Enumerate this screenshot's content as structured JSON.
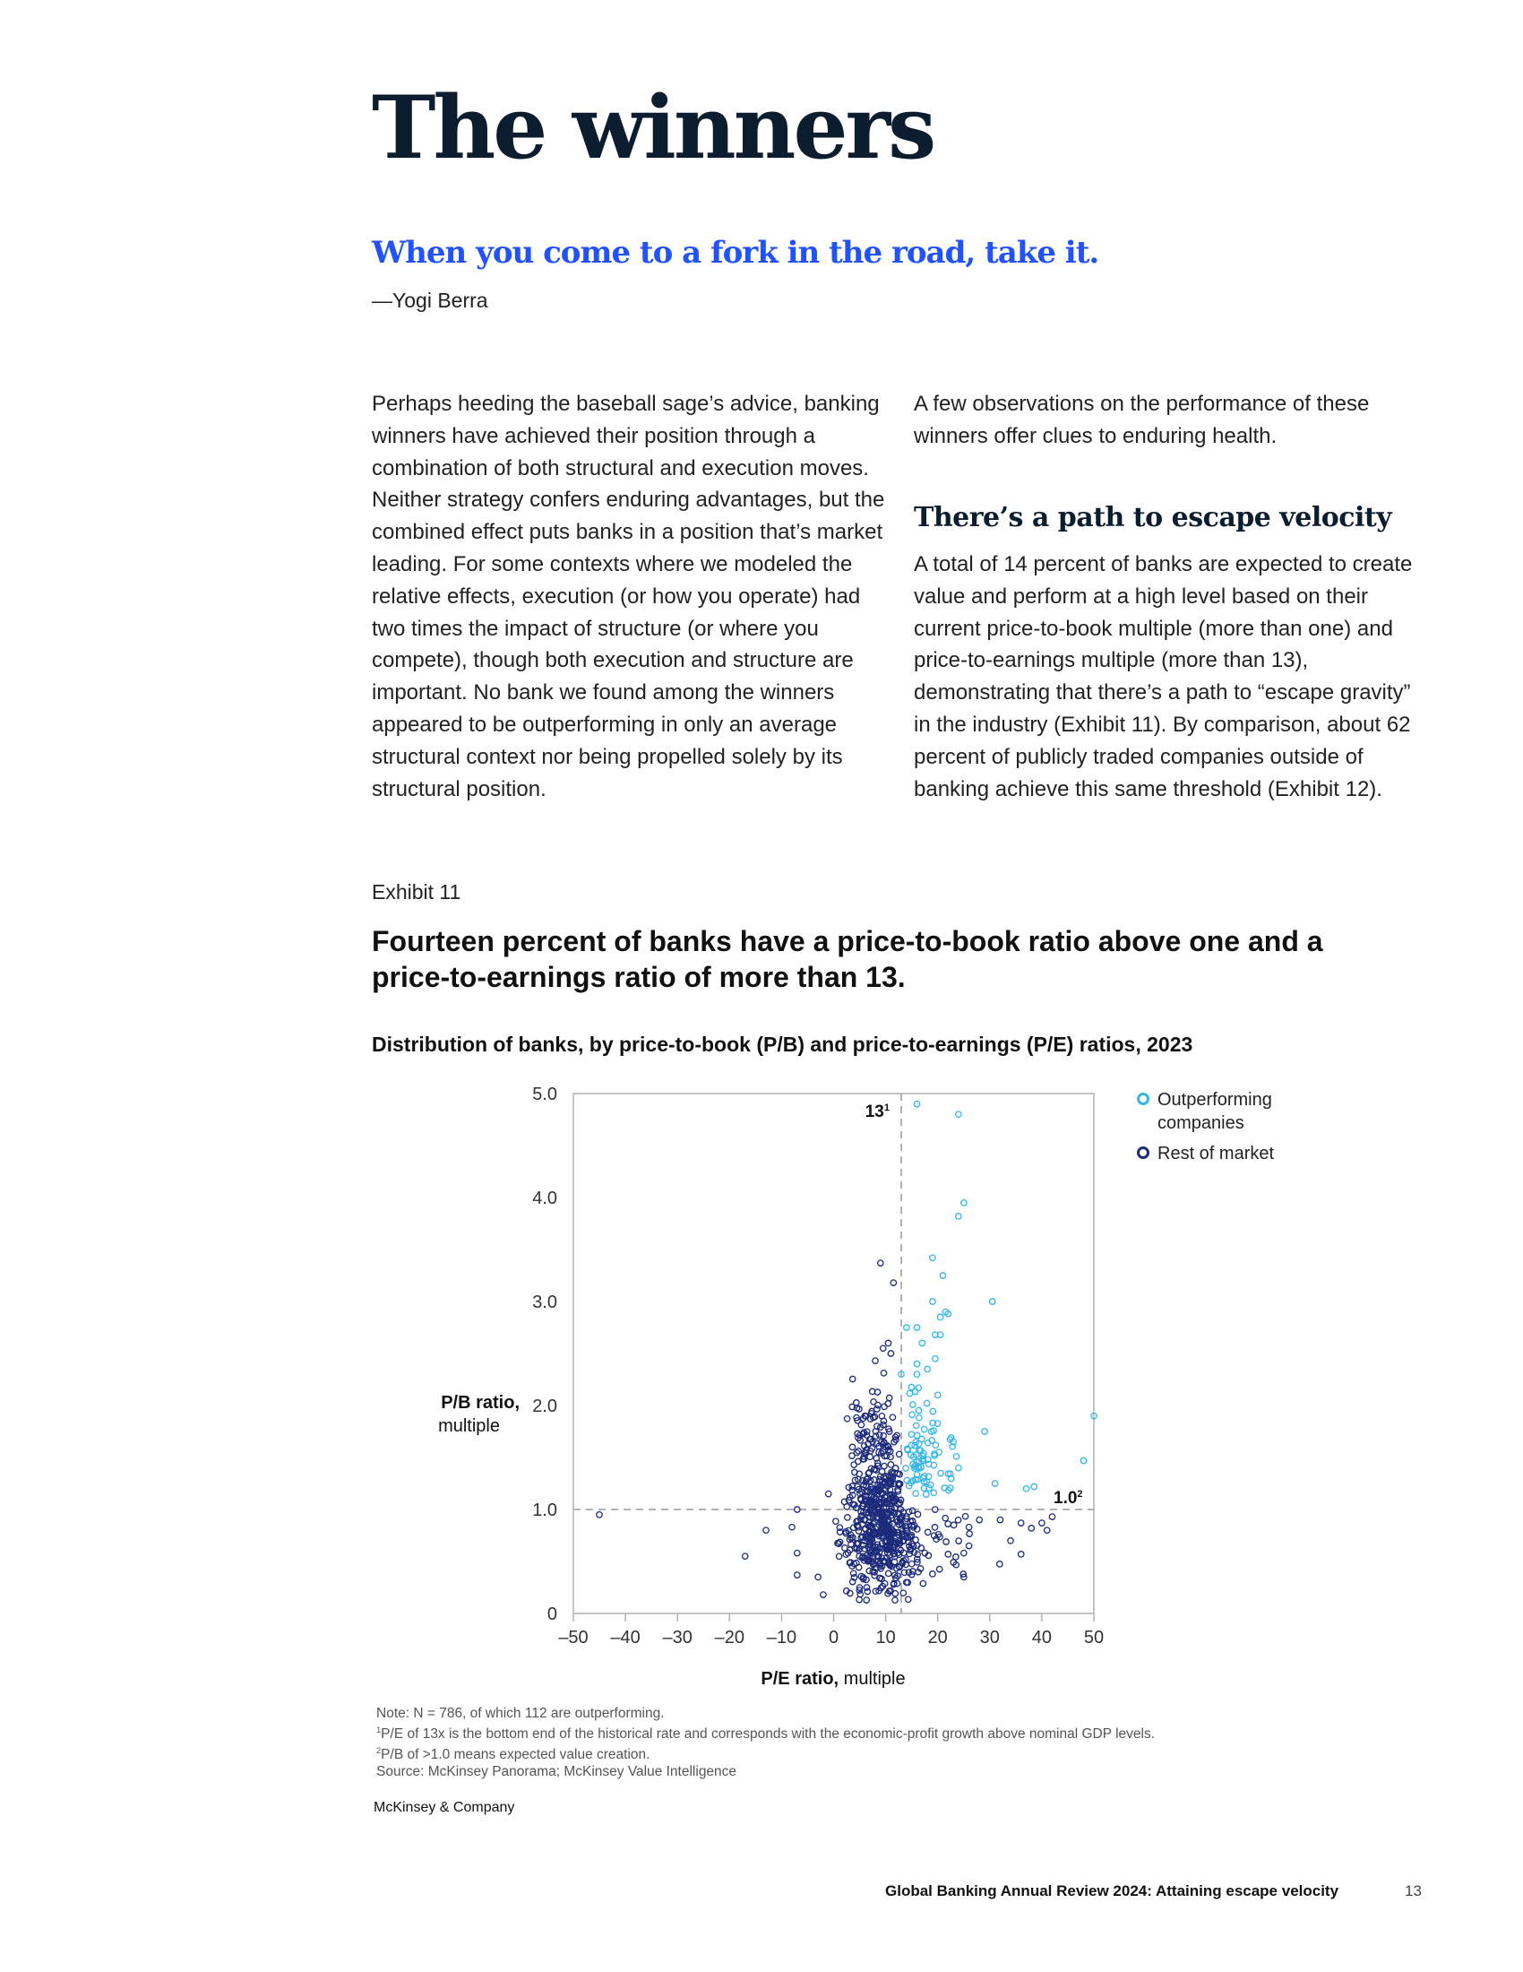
{
  "page": {
    "title": "The winners",
    "quote": "When you come to a fork in the road, take it.",
    "quote_author": "—Yogi Berra",
    "left_column": "Perhaps heeding the baseball sage’s advice, banking winners have achieved their position through a combination of both structural and execution moves. Neither strategy confers enduring advantages, but the combined effect puts banks in a position that’s market leading. For some contexts where we modeled the relative effects, execution (or how you operate) had two times the impact of structure (or where you compete), though both execution and structure are important. No bank we found among the winners appeared to be outperforming in only an average structural context nor being propelled solely by its structural position.",
    "right_column_intro": "A few observations on the performance of these winners offer clues to enduring health.",
    "subhead": "There’s a path to escape velocity",
    "right_column_body": "A total of 14 percent of banks are expected to create value and perform at a high level based on their current price-to-book multiple (more than one) and price-to-earnings multiple (more than 13), demonstrating that there’s a path to “escape gravity” in the industry (Exhibit 11). By comparison, about 62 percent of publicly traded companies outside of banking achieve this same threshold (Exhibit 12)."
  },
  "exhibit": {
    "label": "Exhibit 11",
    "title": "Fourteen percent of banks have a price-to-book ratio above one and a price-to-earnings ratio of more than 13.",
    "subtitle": "Distribution of banks, by price-to-book (P/B) and price-to-earnings (P/E) ratios, 2023"
  },
  "chart_data": {
    "type": "scatter",
    "xlabel_bold": "P/E ratio,",
    "xlabel_rest": " multiple",
    "ylabel_bold": "P/B ratio,",
    "ylabel_rest": "multiple",
    "xlim": [
      -50,
      50
    ],
    "ylim": [
      0,
      5.0
    ],
    "x_ticks": [
      -50,
      -40,
      -30,
      -20,
      -10,
      0,
      10,
      20,
      30,
      40,
      50
    ],
    "x_tick_labels": [
      "–50",
      "–40",
      "–30",
      "–20",
      "–10",
      "0",
      "10",
      "20",
      "30",
      "40",
      "50"
    ],
    "y_ticks": [
      0,
      1.0,
      2.0,
      3.0,
      4.0,
      5.0
    ],
    "y_tick_labels": [
      "0",
      "1.0",
      "2.0",
      "3.0",
      "4.0",
      "5.0"
    ],
    "grid": false,
    "legend_position": "top-right",
    "reference_lines": [
      {
        "axis": "x",
        "value": 13,
        "label": "13",
        "footnote": "1"
      },
      {
        "axis": "y",
        "value": 1.0,
        "label": "1.0",
        "footnote": "2"
      }
    ],
    "colors": {
      "outperforming": "#35b6e8",
      "rest": "#1b2a7a",
      "reference": "#9a9a9a"
    },
    "series": [
      {
        "name": "Outperforming companies",
        "color": "#35b6e8",
        "count": 112
      },
      {
        "name": "Rest of market",
        "color": "#1b2a7a",
        "count": 674
      }
    ]
  },
  "notes": {
    "note": "Note: N = 786, of which 112 are outperforming.",
    "fn1_mark": "1",
    "fn1": "P/E of 13x is the bottom end of the historical rate and corresponds with the economic-profit growth above nominal GDP levels.",
    "fn2_mark": "2",
    "fn2": "P/B of >1.0 means expected value creation.",
    "source": "Source: McKinsey Panorama; McKinsey Value Intelligence"
  },
  "footer": {
    "brand": "McKinsey & Company",
    "report_title": "Global Banking Annual Review 2024: Attaining escape velocity",
    "page_number": "13"
  }
}
